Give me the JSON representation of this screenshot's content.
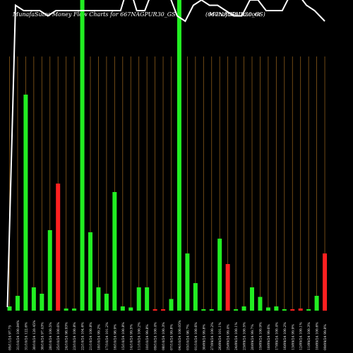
{
  "header": {
    "brand": "MunafaSutra  Money Flow  Charts for 667NAGPUR30_GS",
    "ticker": "(667NAGPUR30_GS)",
    "site": "MunafaSutra.com"
  },
  "colors": {
    "up": "#22ee22",
    "down": "#ff2020",
    "grid": "#8a5a1a",
    "line": "#ffffff",
    "bg": "#000000"
  },
  "chart_data": {
    "type": "bar",
    "bars": [
      {
        "label": "05/11/24 97.75",
        "value": 2,
        "dir": "up"
      },
      {
        "label": "31/10/24 100.84%",
        "value": 7,
        "dir": "up"
      },
      {
        "label": "31/10/24 122.6%",
        "value": 102,
        "dir": "up"
      },
      {
        "label": "30/10/24 120.45%",
        "value": 11,
        "dir": "up"
      },
      {
        "label": "30/10/24 97.43%",
        "value": 8,
        "dir": "up"
      },
      {
        "label": "28/10/24 100.5%",
        "value": 38,
        "dir": "up"
      },
      {
        "label": "25/10/24 100.6%",
        "value": 60,
        "dir": "down"
      },
      {
        "label": "24/10/24 98.93%",
        "value": 1,
        "dir": "up"
      },
      {
        "label": "23/10/24 100.8%",
        "value": 1,
        "dir": "up"
      },
      {
        "label": "22/10/24 104.6%",
        "value": 120,
        "dir": "up"
      },
      {
        "label": "21/10/24 100.8%",
        "value": 37,
        "dir": "up"
      },
      {
        "label": "18/10/24 99.2%",
        "value": 11,
        "dir": "up"
      },
      {
        "label": "17/10/24 101.2%",
        "value": 8,
        "dir": "up"
      },
      {
        "label": "16/10/24 98.9%",
        "value": 56,
        "dir": "up"
      },
      {
        "label": "15/10/24 100.8%",
        "value": 2,
        "dir": "up"
      },
      {
        "label": "14/10/24 99.5%",
        "value": 1.5,
        "dir": "up"
      },
      {
        "label": "11/10/24 100.2%",
        "value": 11,
        "dir": "up"
      },
      {
        "label": "10/10/24 99.8%",
        "value": 11,
        "dir": "up"
      },
      {
        "label": "09/10/24 100.4%",
        "value": 0.5,
        "dir": "down"
      },
      {
        "label": "08/10/24 100.3%",
        "value": 0.5,
        "dir": "down"
      },
      {
        "label": "07/10/24 99.8%",
        "value": 5.5,
        "dir": "up"
      },
      {
        "label": "04/10/24 100.05%",
        "value": 120,
        "dir": "up"
      },
      {
        "label": "03/10/24 98.7%",
        "value": 27,
        "dir": "up"
      },
      {
        "label": "01/10/24 100.6%",
        "value": 13,
        "dir": "up"
      },
      {
        "label": "30/09/24 99.8%",
        "value": 0.5,
        "dir": "up"
      },
      {
        "label": "27/09/24 100.2%",
        "value": 0.5,
        "dir": "up"
      },
      {
        "label": "26/09/24 101.1%",
        "value": 34,
        "dir": "up"
      },
      {
        "label": "25/09/24 99.4%",
        "value": 22,
        "dir": "down"
      },
      {
        "label": "24/09/24 100.1%",
        "value": 0.5,
        "dir": "up"
      },
      {
        "label": "23/09/24 100.5%",
        "value": 2,
        "dir": "up"
      },
      {
        "label": "20/09/24 99.7%",
        "value": 11,
        "dir": "up"
      },
      {
        "label": "19/09/24 100.9%",
        "value": 6.5,
        "dir": "up"
      },
      {
        "label": "18/09/24 99.6%",
        "value": 1.5,
        "dir": "up"
      },
      {
        "label": "17/09/24 100.4%",
        "value": 2,
        "dir": "up"
      },
      {
        "label": "16/09/24 100.2%",
        "value": 0.5,
        "dir": "up"
      },
      {
        "label": "13/09/24 99.9%",
        "value": 0.5,
        "dir": "down"
      },
      {
        "label": "12/09/24 100.1%",
        "value": 1,
        "dir": "down"
      },
      {
        "label": "11/09/24 100.3%",
        "value": 0.5,
        "dir": "up"
      },
      {
        "label": "10/09/24 100.6%",
        "value": 7,
        "dir": "up"
      },
      {
        "label": "09/09/24 99.8%",
        "value": 27,
        "dir": "down"
      }
    ],
    "price_line": [
      {
        "rel": 0
      },
      {
        "rel": 57
      },
      {
        "rel": 56
      },
      {
        "rel": 56
      },
      {
        "rel": 56
      },
      {
        "rel": 55
      },
      {
        "rel": 56
      },
      {
        "rel": 56
      },
      {
        "rel": 56
      },
      {
        "rel": 56
      },
      {
        "rel": 56
      },
      {
        "rel": 56
      },
      {
        "rel": 56
      },
      {
        "rel": 56
      },
      {
        "rel": 56
      },
      {
        "rel": 61
      },
      {
        "rel": 56
      },
      {
        "rel": 56
      },
      {
        "rel": 60
      },
      {
        "rel": 65
      },
      {
        "rel": 59
      },
      {
        "rel": 55
      },
      {
        "rel": 54
      },
      {
        "rel": 57
      },
      {
        "rel": 58
      },
      {
        "rel": 57
      },
      {
        "rel": 57
      },
      {
        "rel": 56
      },
      {
        "rel": 55
      },
      {
        "rel": 55
      },
      {
        "rel": 58
      },
      {
        "rel": 58
      },
      {
        "rel": 56
      },
      {
        "rel": 56
      },
      {
        "rel": 56
      },
      {
        "rel": 59
      },
      {
        "rel": 59
      },
      {
        "rel": 57
      },
      {
        "rel": 56
      },
      {
        "rel": 54
      }
    ],
    "ylim": [
      0,
      120
    ],
    "grid": "vertical"
  }
}
